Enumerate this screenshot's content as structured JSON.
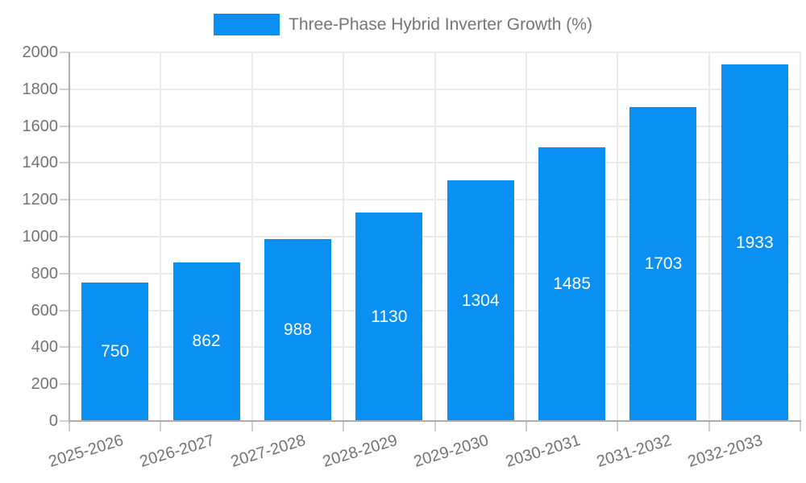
{
  "chart_data": {
    "type": "bar",
    "title": "",
    "series_name": "Three-Phase Hybrid Inverter Growth (%)",
    "categories": [
      "2025-2026",
      "2026-2027",
      "2027-2028",
      "2028-2029",
      "2029-2030",
      "2030-2031",
      "2031-2032",
      "2032-2033"
    ],
    "values": [
      750,
      862,
      988,
      1130,
      1304,
      1485,
      1703,
      1933
    ],
    "value_labels": [
      "750",
      "862",
      "988",
      "1130",
      "1304",
      "1485",
      "1703",
      "1933"
    ],
    "xlabel": "",
    "ylabel": "",
    "ylim": [
      0,
      2000
    ],
    "ytick_step": 200,
    "yticks": [
      "0",
      "200",
      "400",
      "600",
      "800",
      "1000",
      "1200",
      "1400",
      "1600",
      "1800",
      "2000"
    ],
    "grid": true,
    "gridline_position": "category-boundaries",
    "legend_position": "top",
    "x_tick_rotation_deg": -17,
    "colors": {
      "bar": "#0a8ff2",
      "value_label": "#ffffff",
      "tick_label": "#737373",
      "legend_label": "#757575",
      "grid": "#eaeaea",
      "axis_line": "#adadad",
      "tick_mark": "#cfcfcf",
      "background": "#ffffff"
    }
  }
}
